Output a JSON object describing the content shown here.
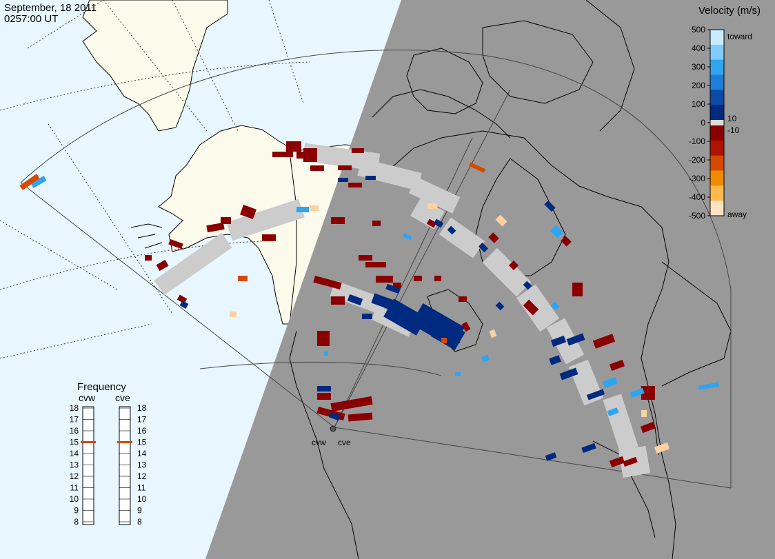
{
  "header": {
    "date": "September, 18 2011",
    "time": "0257:00 UT"
  },
  "legend": {
    "title": "Velocity (m/s)",
    "ticks": [
      "500",
      "400",
      "300",
      "200",
      "100",
      "0",
      "-100",
      "-200",
      "-300",
      "-400",
      "-500"
    ],
    "inner_labels": [
      "10",
      "-10"
    ],
    "toward_label": "toward",
    "away_label": "away",
    "scale_colors": [
      "#c8ecff",
      "#7fcaff",
      "#2fa5f0",
      "#1e7ed8",
      "#0a4aa8",
      "#002a80",
      "#8a0000",
      "#b01400",
      "#d64a00",
      "#f08a00",
      "#ffb84a",
      "#ffe2c0"
    ]
  },
  "frequency": {
    "title": "Frequency",
    "radars": [
      {
        "name": "cvw",
        "value_mhz": 15
      },
      {
        "name": "cve",
        "value_mhz": 15
      }
    ],
    "ticks": [
      "18",
      "17",
      "16",
      "15",
      "14",
      "13",
      "12",
      "11",
      "10",
      "9",
      "8"
    ]
  },
  "map": {
    "radar_labels": [
      "cvw",
      "cve"
    ],
    "colors": {
      "ocean": "#e8f7ff",
      "land": "#fcfaea",
      "night": "#999999",
      "ground_scatter": "#cccccc"
    }
  }
}
